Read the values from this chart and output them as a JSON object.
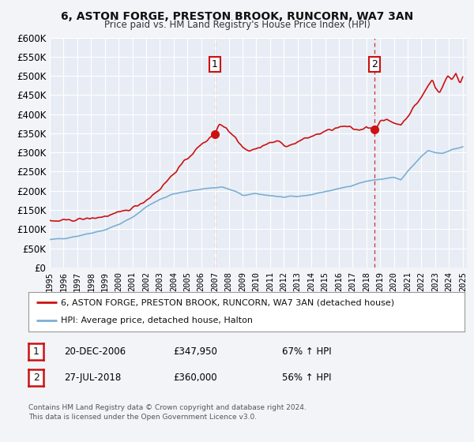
{
  "title": "6, ASTON FORGE, PRESTON BROOK, RUNCORN, WA7 3AN",
  "subtitle": "Price paid vs. HM Land Registry's House Price Index (HPI)",
  "legend_line1": "6, ASTON FORGE, PRESTON BROOK, RUNCORN, WA7 3AN (detached house)",
  "legend_line2": "HPI: Average price, detached house, Halton",
  "annotation1_date": "20-DEC-2006",
  "annotation1_price": "£347,950",
  "annotation1_hpi": "67% ↑ HPI",
  "annotation2_date": "27-JUL-2018",
  "annotation2_price": "£360,000",
  "annotation2_hpi": "56% ↑ HPI",
  "footer": "Contains HM Land Registry data © Crown copyright and database right 2024.\nThis data is licensed under the Open Government Licence v3.0.",
  "hpi_color": "#7bafd4",
  "price_color": "#cc1111",
  "background_color": "#f2f4f8",
  "plot_bg_color": "#e8edf5",
  "grid_color": "#ffffff",
  "dashed_line1_x": 2006.97,
  "dashed_line2_x": 2018.57,
  "marker1_x": 2006.97,
  "marker1_y": 347950,
  "marker2_x": 2018.57,
  "marker2_y": 360000,
  "ylim": [
    0,
    600000
  ],
  "yticks": [
    0,
    50000,
    100000,
    150000,
    200000,
    250000,
    300000,
    350000,
    400000,
    450000,
    500000,
    550000,
    600000
  ],
  "ytick_labels": [
    "£0",
    "£50K",
    "£100K",
    "£150K",
    "£200K",
    "£250K",
    "£300K",
    "£350K",
    "£400K",
    "£450K",
    "£500K",
    "£550K",
    "£600K"
  ],
  "xlim_start": 1995,
  "xlim_end": 2025.3
}
